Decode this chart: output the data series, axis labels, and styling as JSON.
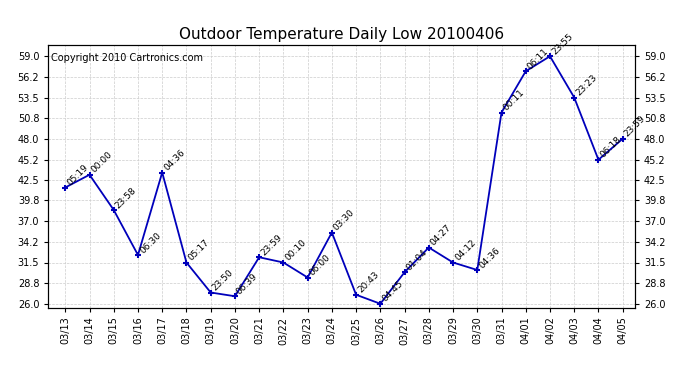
{
  "title": "Outdoor Temperature Daily Low 20100406",
  "copyright": "Copyright 2010 Cartronics.com",
  "x_labels": [
    "03/13",
    "03/14",
    "03/15",
    "03/16",
    "03/17",
    "03/18",
    "03/19",
    "03/20",
    "03/21",
    "03/22",
    "03/23",
    "03/24",
    "03/25",
    "03/26",
    "03/27",
    "03/28",
    "03/29",
    "03/30",
    "03/31",
    "04/01",
    "04/02",
    "04/03",
    "04/04",
    "04/05"
  ],
  "y_values": [
    41.5,
    43.2,
    38.5,
    32.5,
    43.5,
    31.5,
    27.5,
    27.0,
    32.2,
    31.5,
    29.5,
    35.5,
    27.2,
    26.0,
    30.2,
    33.5,
    31.5,
    30.5,
    51.5,
    57.0,
    59.0,
    53.5,
    45.2,
    48.0
  ],
  "time_labels": [
    "05:19",
    "00:00",
    "23:58",
    "06:30",
    "04:36",
    "05:17",
    "23:50",
    "06:39",
    "23:59",
    "00:10",
    "06:00",
    "03:30",
    "20:43",
    "04:45",
    "01:04",
    "04:27",
    "04:12",
    "04:36",
    "00:11",
    "06:11",
    "23:55",
    "23:23",
    "06:18",
    "23:59"
  ],
  "y_ticks": [
    26.0,
    28.8,
    31.5,
    34.2,
    37.0,
    39.8,
    42.5,
    45.2,
    48.0,
    50.8,
    53.5,
    56.2,
    59.0
  ],
  "ylim": [
    25.5,
    60.5
  ],
  "xlim": [
    -0.7,
    23.5
  ],
  "line_color": "#0000BB",
  "grid_color": "#CCCCCC",
  "bg_color": "#FFFFFF",
  "title_fontsize": 11,
  "copyright_fontsize": 7,
  "label_fontsize": 6.5,
  "tick_fontsize": 7
}
